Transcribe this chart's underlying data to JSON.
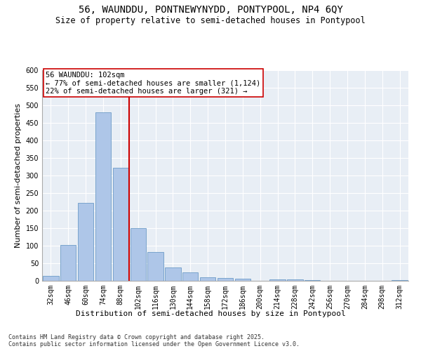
{
  "title_line1": "56, WAUNDDU, PONTNEWYNYDD, PONTYPOOL, NP4 6QY",
  "title_line2": "Size of property relative to semi-detached houses in Pontypool",
  "xlabel": "Distribution of semi-detached houses by size in Pontypool",
  "ylabel": "Number of semi-detached properties",
  "categories": [
    "32sqm",
    "46sqm",
    "60sqm",
    "74sqm",
    "88sqm",
    "102sqm",
    "116sqm",
    "130sqm",
    "144sqm",
    "158sqm",
    "172sqm",
    "186sqm",
    "200sqm",
    "214sqm",
    "228sqm",
    "242sqm",
    "256sqm",
    "270sqm",
    "284sqm",
    "298sqm",
    "312sqm"
  ],
  "values": [
    15,
    103,
    222,
    480,
    323,
    150,
    83,
    38,
    25,
    10,
    8,
    6,
    0,
    5,
    5,
    3,
    0,
    0,
    0,
    0,
    3
  ],
  "bar_color": "#aec6e8",
  "bar_edge_color": "#5a8fc0",
  "marker_index": 5,
  "marker_color": "#cc0000",
  "annotation_title": "56 WAUNDDU: 102sqm",
  "annotation_line1": "← 77% of semi-detached houses are smaller (1,124)",
  "annotation_line2": "22% of semi-detached houses are larger (321) →",
  "annotation_box_color": "#cc0000",
  "ylim": [
    0,
    600
  ],
  "yticks": [
    0,
    50,
    100,
    150,
    200,
    250,
    300,
    350,
    400,
    450,
    500,
    550,
    600
  ],
  "background_color": "#e8eef5",
  "footer_line1": "Contains HM Land Registry data © Crown copyright and database right 2025.",
  "footer_line2": "Contains public sector information licensed under the Open Government Licence v3.0.",
  "title_fontsize": 10,
  "subtitle_fontsize": 8.5,
  "axis_label_fontsize": 8,
  "tick_fontsize": 7,
  "annotation_fontsize": 7.5,
  "footer_fontsize": 6
}
